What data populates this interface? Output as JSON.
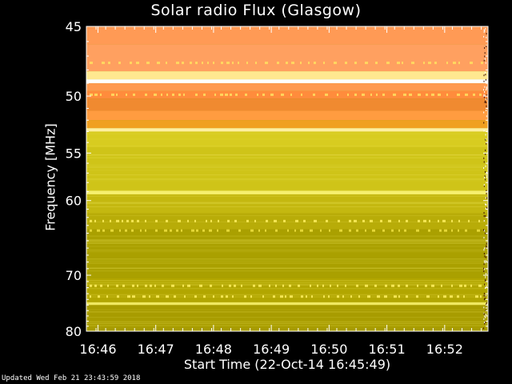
{
  "chart_data": {
    "type": "heatmap",
    "title": "Solar radio Flux (Glasgow)",
    "xlabel": "Start Time (22-Oct-14 16:45:49)",
    "ylabel": "Frequency [MHz]",
    "x_ticks": [
      "16:46",
      "16:47",
      "16:48",
      "16:49",
      "16:50",
      "16:51",
      "16:52"
    ],
    "x_tick_minutes": [
      0.2,
      1.2,
      2.2,
      3.2,
      4.2,
      5.2,
      6.2
    ],
    "xlim_minutes": [
      0,
      6.95
    ],
    "y_ticks": [
      45,
      50,
      55,
      60,
      70,
      80
    ],
    "ylim": [
      45,
      80
    ],
    "y_scale": "reciprocal",
    "grid": false,
    "bands": [
      {
        "from": 45,
        "to": 46.2,
        "color": "#ff9a55"
      },
      {
        "from": 46.2,
        "to": 48.1,
        "color": "#ffa060"
      },
      {
        "from": 48.1,
        "to": 48.7,
        "color": "#ffe890"
      },
      {
        "from": 48.7,
        "to": 49.0,
        "color": "#ffffff"
      },
      {
        "from": 49.0,
        "to": 49.6,
        "color": "#ff9a50"
      },
      {
        "from": 49.6,
        "to": 50.2,
        "color": "#ff8c3c"
      },
      {
        "from": 50.2,
        "to": 51.2,
        "color": "#f08a30"
      },
      {
        "from": 51.2,
        "to": 52.0,
        "color": "#ff9c40"
      },
      {
        "from": 52.0,
        "to": 52.7,
        "color": "#f0a020"
      },
      {
        "from": 52.7,
        "to": 53.0,
        "color": "#fff0a0"
      },
      {
        "from": 53.0,
        "to": 54.5,
        "color": "#d8cc20"
      },
      {
        "from": 54.5,
        "to": 58.9,
        "color": "#cfc418"
      },
      {
        "from": 58.9,
        "to": 59.3,
        "color": "#f6f070"
      },
      {
        "from": 59.3,
        "to": 61.5,
        "color": "#c4b810"
      },
      {
        "from": 61.5,
        "to": 63.5,
        "color": "#b8ac08"
      },
      {
        "from": 63.5,
        "to": 70.5,
        "color": "#aaa000"
      },
      {
        "from": 70.5,
        "to": 74.5,
        "color": "#b2a600"
      },
      {
        "from": 74.5,
        "to": 75.0,
        "color": "#f0e860"
      },
      {
        "from": 75.0,
        "to": 80,
        "color": "#a89c00"
      }
    ]
  },
  "footer": {
    "updated": "Updated Wed Feb 21 23:43:59 2018"
  },
  "colors": {
    "background": "#000000",
    "text": "#ffffff"
  }
}
